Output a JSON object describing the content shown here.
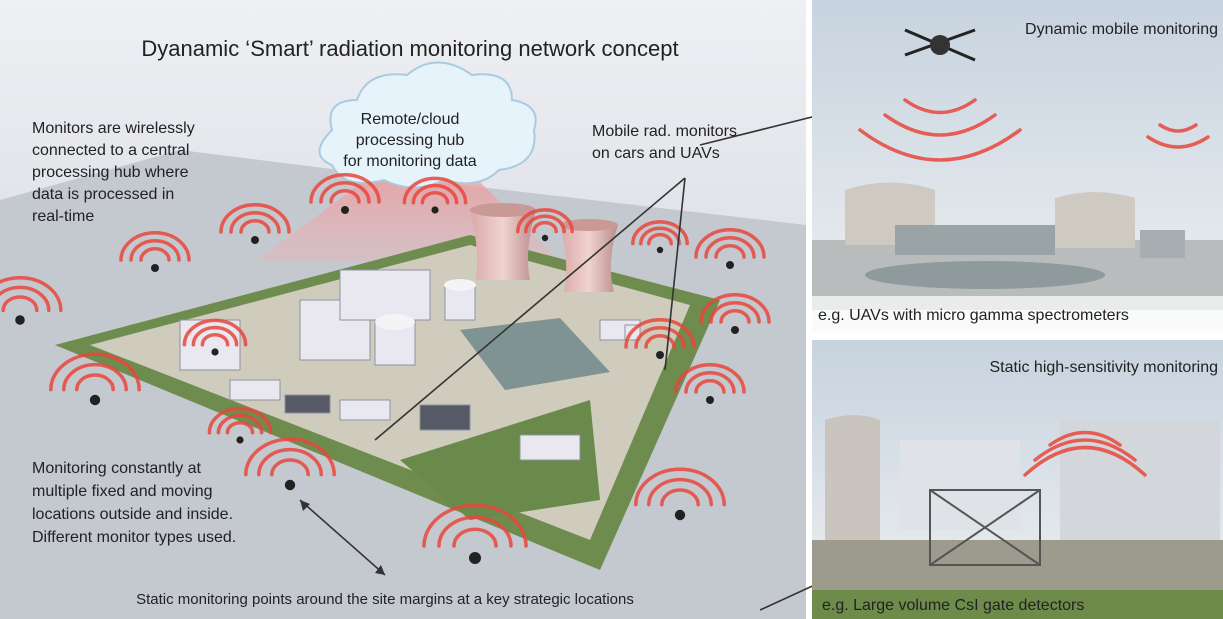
{
  "main": {
    "title": "Dyanamic ‘Smart’ radiation monitoring network concept",
    "cloud_label": [
      "Remote/cloud",
      "processing hub",
      "for monitoring data"
    ],
    "hub_note": [
      "Monitors are wirelessly",
      "connected to a central",
      "processing hub where",
      "data is processed in",
      "real-time"
    ],
    "mobile_note": [
      "Mobile rad. monitors",
      "on cars and UAVs"
    ],
    "constant_note": [
      "Monitoring constantly at",
      "multiple fixed and moving",
      "locations outside and inside.",
      "Different monitor types used."
    ],
    "static_note": "Static monitoring points around the site margins at a key strategic locations"
  },
  "panels": [
    {
      "title": "Dynamic mobile monitoring",
      "caption": "e.g. UAVs with micro gamma spectrometers"
    },
    {
      "title": "Static high-sensitivity monitoring",
      "caption": "e.g. Large volume CsI gate detectors"
    }
  ]
}
